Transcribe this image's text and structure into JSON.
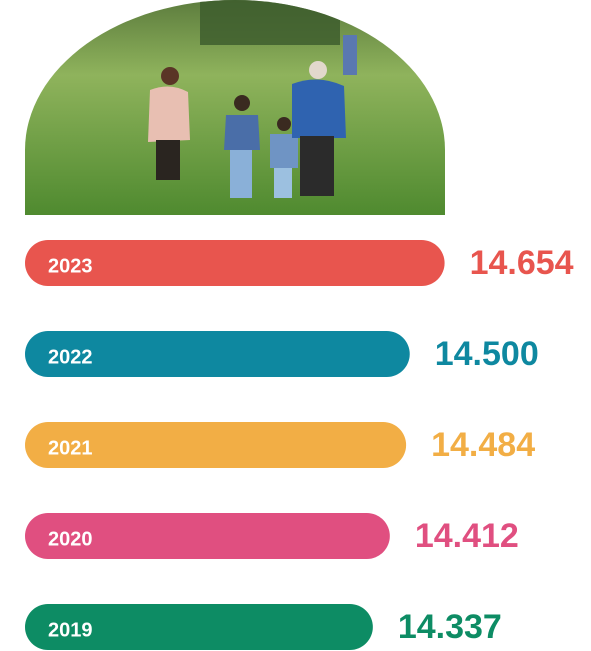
{
  "chart_data": {
    "type": "bar",
    "orientation": "horizontal",
    "categories": [
      "2023",
      "2022",
      "2021",
      "2020",
      "2019"
    ],
    "values": [
      14654,
      14500,
      14484,
      14412,
      14337
    ],
    "value_labels": [
      "14.654",
      "14.500",
      "14.484",
      "14.412",
      "14.337"
    ],
    "colors": [
      "#e8554e",
      "#0e88a0",
      "#f2ae45",
      "#e04f80",
      "#0d8c64"
    ],
    "xlim": [
      12800,
      14700
    ]
  }
}
